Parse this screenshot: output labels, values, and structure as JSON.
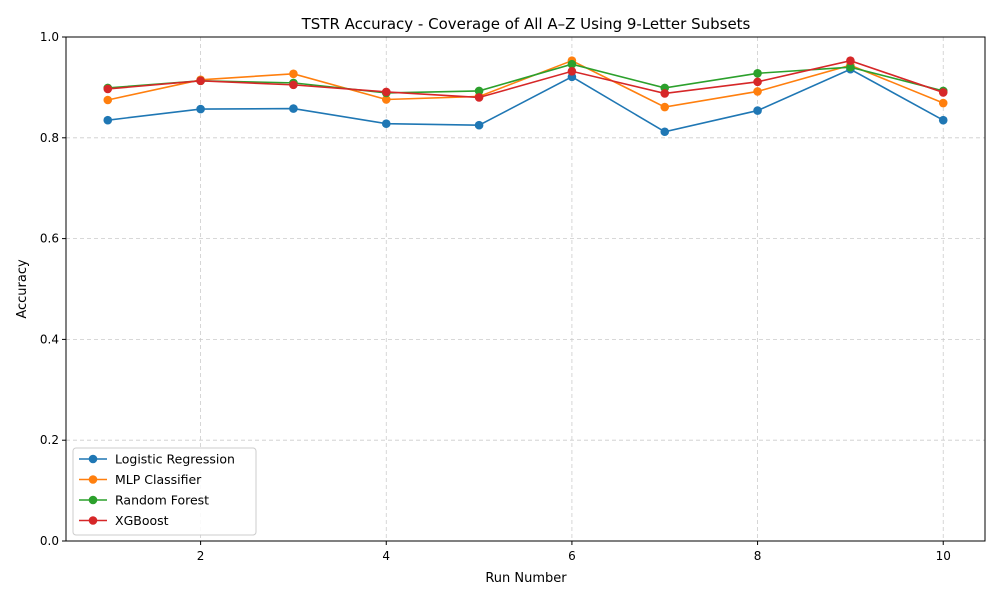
{
  "chart_data": {
    "type": "line",
    "title": "TSTR Accuracy - Coverage of All A–Z Using 9-Letter Subsets",
    "xlabel": "Run Number",
    "ylabel": "Accuracy",
    "x": [
      1,
      2,
      3,
      4,
      5,
      6,
      7,
      8,
      9,
      10
    ],
    "xlim": [
      0.55,
      10.45
    ],
    "ylim": [
      0.0,
      1.0
    ],
    "xticks": [
      2,
      4,
      6,
      8,
      10
    ],
    "yticks": [
      0.0,
      0.2,
      0.4,
      0.6,
      0.8,
      1.0
    ],
    "xtick_labels": [
      "2",
      "4",
      "6",
      "8",
      "10"
    ],
    "ytick_labels": [
      "0.0",
      "0.2",
      "0.4",
      "0.6",
      "0.8",
      "1.0"
    ],
    "grid": true,
    "legend_position": "lower-left",
    "series": [
      {
        "name": "Logistic Regression",
        "color": "#1f77b4",
        "values": [
          0.835,
          0.857,
          0.858,
          0.828,
          0.825,
          0.921,
          0.812,
          0.854,
          0.936,
          0.835
        ]
      },
      {
        "name": "MLP Classifier",
        "color": "#ff7f0e",
        "values": [
          0.875,
          0.915,
          0.927,
          0.876,
          0.882,
          0.953,
          0.861,
          0.892,
          0.944,
          0.869
        ]
      },
      {
        "name": "Random Forest",
        "color": "#2ca02c",
        "values": [
          0.899,
          0.913,
          0.909,
          0.889,
          0.893,
          0.946,
          0.899,
          0.928,
          0.94,
          0.893
        ]
      },
      {
        "name": "XGBoost",
        "color": "#d62728",
        "values": [
          0.897,
          0.913,
          0.905,
          0.891,
          0.88,
          0.932,
          0.888,
          0.911,
          0.953,
          0.89
        ]
      }
    ]
  }
}
